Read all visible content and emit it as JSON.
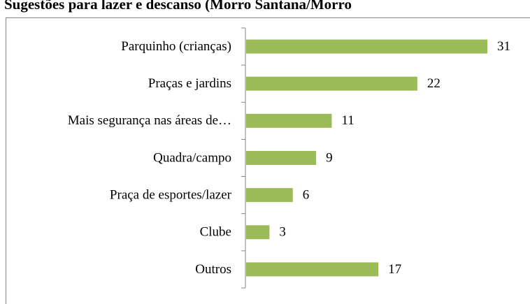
{
  "chart_data": {
    "type": "hbar",
    "title": "Sugestões para lazer e descanso (Morro Santana/Morro",
    "categories": [
      "Parquinho (crianças)",
      "Praças e jardins",
      "Mais segurança nas áreas de…",
      "Quadra/campo",
      "Praça de esportes/lazer",
      "Clube",
      "Outros"
    ],
    "values": [
      31,
      22,
      11,
      9,
      6,
      3,
      17
    ],
    "color": "#9bbb59"
  }
}
